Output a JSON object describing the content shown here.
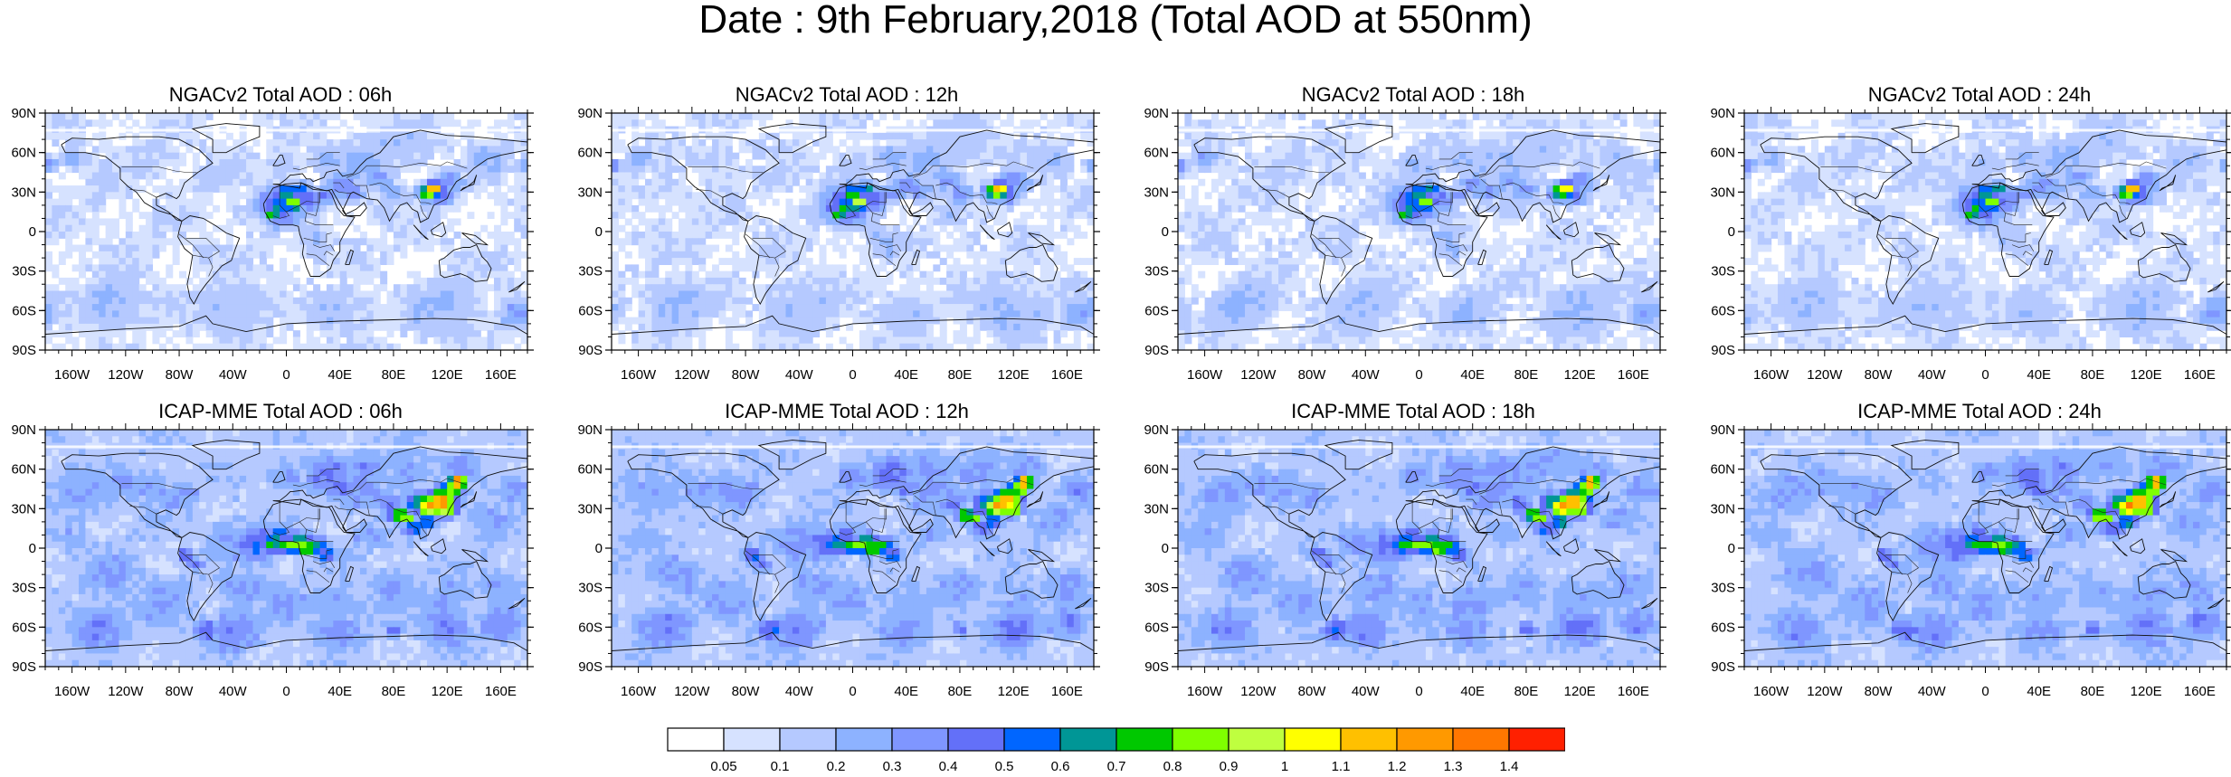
{
  "figure": {
    "title": "Date : 9th February,2018 (Total AOD at 550nm)"
  },
  "panels": [
    {
      "title": "NGACv2 Total AOD : 06h",
      "model": "NGAC"
    },
    {
      "title": "NGACv2 Total AOD : 12h",
      "model": "NGAC"
    },
    {
      "title": "NGACv2 Total AOD : 18h",
      "model": "NGAC"
    },
    {
      "title": "NGACv2 Total AOD : 24h",
      "model": "NGAC"
    },
    {
      "title": "ICAP-MME Total AOD : 06h",
      "model": "ICAP"
    },
    {
      "title": "ICAP-MME Total AOD : 12h",
      "model": "ICAP"
    },
    {
      "title": "ICAP-MME Total AOD : 18h",
      "model": "ICAP"
    },
    {
      "title": "ICAP-MME Total AOD : 24h",
      "model": "ICAP"
    }
  ],
  "axes": {
    "lat_labels": [
      "90N",
      "60N",
      "30N",
      "0",
      "30S",
      "60S",
      "90S"
    ],
    "lat_values": [
      90,
      60,
      30,
      0,
      -30,
      -60,
      -90
    ],
    "lon_labels": [
      "160W",
      "120W",
      "80W",
      "40W",
      "0",
      "40E",
      "80E",
      "120E",
      "160E"
    ],
    "lon_values": [
      -160,
      -120,
      -80,
      -40,
      0,
      40,
      80,
      120,
      160
    ],
    "lon_range": [
      -180,
      180
    ],
    "lat_range": [
      -90,
      90
    ]
  },
  "colorbar": {
    "labels": [
      "0.05",
      "0.1",
      "0.2",
      "0.3",
      "0.4",
      "0.5",
      "0.6",
      "0.7",
      "0.8",
      "0.9",
      "1",
      "1.1",
      "1.2",
      "1.3",
      "1.4"
    ],
    "colors": [
      "#ffffff",
      "#d6e2ff",
      "#b5c9ff",
      "#8db2ff",
      "#7f96ff",
      "#6370f8",
      "#0066ff",
      "#009696",
      "#00c800",
      "#7fff00",
      "#bfff3f",
      "#ffff00",
      "#ffc000",
      "#ff9900",
      "#ff7700",
      "#ff2000"
    ]
  },
  "chart_data": {
    "type": "heatmap",
    "title": "Date : 9th February,2018 (Total AOD at 550nm)",
    "variable": "Total AOD at 550nm",
    "panels": [
      "NGACv2 Total AOD : 06h",
      "NGACv2 Total AOD : 12h",
      "NGACv2 Total AOD : 18h",
      "NGACv2 Total AOD : 24h",
      "ICAP-MME Total AOD : 06h",
      "ICAP-MME Total AOD : 12h",
      "ICAP-MME Total AOD : 18h",
      "ICAP-MME Total AOD : 24h"
    ],
    "levels": [
      0.05,
      0.1,
      0.2,
      0.3,
      0.4,
      0.5,
      0.6,
      0.7,
      0.8,
      0.9,
      1,
      1.1,
      1.2,
      1.3,
      1.4
    ],
    "xlim": [
      -180,
      180
    ],
    "ylim": [
      -90,
      90
    ],
    "grid": false
  }
}
